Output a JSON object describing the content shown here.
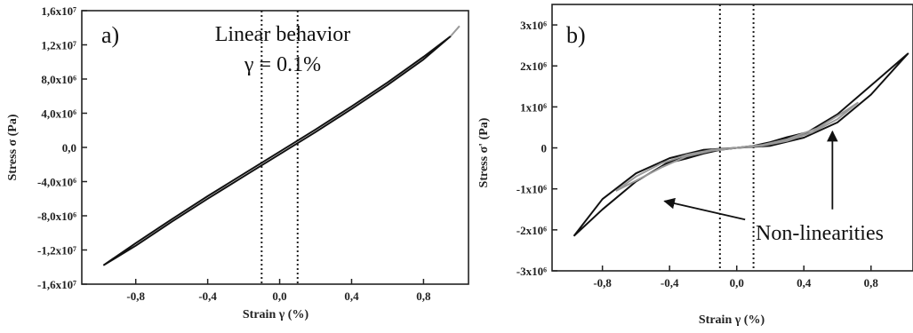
{
  "chart_data": [
    {
      "type": "line",
      "panel_label": "a)",
      "annotation": "Linear behavior",
      "annotation_line2": "γ = 0.1%",
      "xlabel": "Strain γ (%)",
      "ylabel": "Stress σ (Pa)",
      "xlim": [
        -1.1,
        1.05
      ],
      "ylim": [
        -16000000,
        16000000
      ],
      "x_ticks": [
        -0.8,
        -0.4,
        0.0,
        0.4,
        0.8
      ],
      "x_tick_labels": [
        "-0,8",
        "-0,4",
        "0,0",
        "0,4",
        "0,8"
      ],
      "y_ticks": [
        -16000000,
        -12000000,
        -8000000,
        -4000000,
        0,
        4000000,
        8000000,
        12000000,
        16000000
      ],
      "y_tick_labels": [
        "-1,6x10⁷",
        "-1,2x10⁷",
        "-8,0x10⁶",
        "-4,0x10⁶",
        "0,0",
        "4,0x10⁶",
        "8,0x10⁶",
        "1,2x10⁷",
        "1,6x10⁷"
      ],
      "marker_lines_x": [
        -0.1,
        0.1
      ],
      "grid": false,
      "series": [
        {
          "color": "#111111",
          "x": [
            -0.98,
            -0.8,
            -0.6,
            -0.4,
            -0.2,
            0.0,
            0.2,
            0.4,
            0.6,
            0.8,
            0.95,
            0.8,
            0.6,
            0.4,
            0.2,
            0.0,
            -0.2,
            -0.4,
            -0.6,
            -0.8,
            -0.98
          ],
          "y": [
            -13800000,
            -11200000,
            -8400000,
            -5700000,
            -3100000,
            -500000,
            2100000,
            4800000,
            7600000,
            10600000,
            13000000,
            10300000,
            7300000,
            4500000,
            1800000,
            -800000,
            -3400000,
            -6000000,
            -8700000,
            -11500000,
            -13800000
          ]
        },
        {
          "color": "#999999",
          "x": [
            0.95,
            1.0
          ],
          "y": [
            13000000,
            14200000
          ]
        }
      ]
    },
    {
      "type": "line",
      "panel_label": "b)",
      "annotation": "Non-linearities",
      "xlabel": "Strain γ (%)",
      "ylabel": "Stress σ' (Pa)",
      "xlim": [
        -1.1,
        1.05
      ],
      "ylim": [
        -3000000,
        3500000
      ],
      "x_ticks": [
        -0.8,
        -0.4,
        0.0,
        0.4,
        0.8
      ],
      "x_tick_labels": [
        "-0,8",
        "-0,4",
        "0,0",
        "0,4",
        "0,8"
      ],
      "y_ticks": [
        -3000000,
        -2000000,
        -1000000,
        0,
        1000000,
        2000000,
        3000000
      ],
      "y_tick_labels": [
        "-3x10⁶",
        "-2x10⁶",
        "-1x10⁶",
        "0",
        "1x10⁶",
        "2x10⁶",
        "3x10⁶"
      ],
      "marker_lines_x": [
        -0.1,
        0.1
      ],
      "grid": false,
      "series": [
        {
          "color": "#111111",
          "x": [
            -0.97,
            -0.8,
            -0.6,
            -0.4,
            -0.2,
            0.0,
            0.2,
            0.4,
            0.6,
            0.8,
            1.02,
            0.85,
            0.6,
            0.4,
            0.2,
            0.0,
            -0.2,
            -0.4,
            -0.6,
            -0.8,
            -0.97
          ],
          "y": [
            -2150000,
            -1250000,
            -620000,
            -250000,
            -50000,
            0,
            50000,
            250000,
            620000,
            1300000,
            2300000,
            1700000,
            820000,
            330000,
            80000,
            0,
            -80000,
            -330000,
            -820000,
            -1500000,
            -2150000
          ]
        },
        {
          "color": "#111111",
          "x": [
            -0.42,
            -0.3,
            -0.2,
            -0.1,
            0.0,
            0.1,
            0.2,
            0.3,
            0.42,
            0.3,
            0.2,
            0.1,
            0.0,
            -0.1,
            -0.2,
            -0.3,
            -0.42
          ],
          "y": [
            -380000,
            -220000,
            -110000,
            -40000,
            0,
            40000,
            110000,
            220000,
            380000,
            260000,
            140000,
            50000,
            0,
            -50000,
            -140000,
            -260000,
            -380000
          ]
        },
        {
          "color": "#999999",
          "x": [
            -0.72,
            -0.6,
            -0.45,
            -0.3,
            -0.15,
            0.0,
            0.15,
            0.3,
            0.45,
            0.6,
            0.72,
            0.62,
            0.48,
            0.3,
            0.15,
            0.0,
            -0.15,
            -0.3,
            -0.45,
            -0.6,
            -0.72
          ],
          "y": [
            -1050000,
            -700000,
            -380000,
            -170000,
            -50000,
            0,
            50000,
            170000,
            380000,
            700000,
            1100000,
            830000,
            480000,
            210000,
            70000,
            0,
            -70000,
            -210000,
            -480000,
            -800000,
            -1050000
          ]
        }
      ],
      "arrows": [
        {
          "label": "Non-linearities",
          "from_x": 0.05,
          "from_y": -1750000,
          "to_x": -0.43,
          "to_y": -1300000
        },
        {
          "label": "Non-linearities",
          "from_x": 0.57,
          "from_y": -1500000,
          "to_x": 0.57,
          "to_y": 400000
        }
      ]
    }
  ]
}
